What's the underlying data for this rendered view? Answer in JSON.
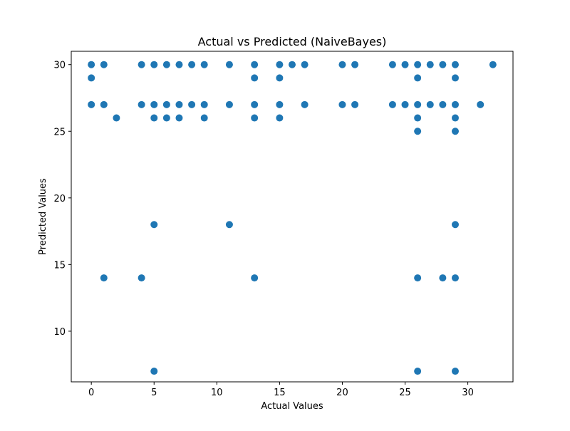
{
  "chart_data": {
    "type": "scatter",
    "title": "Actual vs Predicted (NaiveBayes)",
    "xlabel": "Actual Values",
    "ylabel": "Predicted Values",
    "xlim": [
      -1.6,
      33.6
    ],
    "ylim": [
      6.2,
      31.0
    ],
    "x_ticks": [
      0,
      5,
      10,
      15,
      20,
      25,
      30
    ],
    "y_ticks": [
      10,
      15,
      20,
      25,
      30
    ],
    "grid": false,
    "marker_color": "#1f77b4",
    "points": [
      {
        "x": 0,
        "y": 30
      },
      {
        "x": 0,
        "y": 29
      },
      {
        "x": 0,
        "y": 27
      },
      {
        "x": 1,
        "y": 30
      },
      {
        "x": 1,
        "y": 27
      },
      {
        "x": 1,
        "y": 14
      },
      {
        "x": 2,
        "y": 26
      },
      {
        "x": 4,
        "y": 30
      },
      {
        "x": 4,
        "y": 27
      },
      {
        "x": 4,
        "y": 14
      },
      {
        "x": 5,
        "y": 30
      },
      {
        "x": 5,
        "y": 27
      },
      {
        "x": 5,
        "y": 26
      },
      {
        "x": 5,
        "y": 18
      },
      {
        "x": 5,
        "y": 7
      },
      {
        "x": 6,
        "y": 30
      },
      {
        "x": 6,
        "y": 27
      },
      {
        "x": 6,
        "y": 26
      },
      {
        "x": 7,
        "y": 30
      },
      {
        "x": 7,
        "y": 27
      },
      {
        "x": 7,
        "y": 26
      },
      {
        "x": 8,
        "y": 30
      },
      {
        "x": 8,
        "y": 27
      },
      {
        "x": 9,
        "y": 30
      },
      {
        "x": 9,
        "y": 27
      },
      {
        "x": 9,
        "y": 26
      },
      {
        "x": 11,
        "y": 30
      },
      {
        "x": 11,
        "y": 27
      },
      {
        "x": 11,
        "y": 18
      },
      {
        "x": 13,
        "y": 30
      },
      {
        "x": 13,
        "y": 29
      },
      {
        "x": 13,
        "y": 27
      },
      {
        "x": 13,
        "y": 26
      },
      {
        "x": 13,
        "y": 14
      },
      {
        "x": 15,
        "y": 30
      },
      {
        "x": 15,
        "y": 29
      },
      {
        "x": 15,
        "y": 27
      },
      {
        "x": 15,
        "y": 26
      },
      {
        "x": 16,
        "y": 30
      },
      {
        "x": 17,
        "y": 30
      },
      {
        "x": 17,
        "y": 27
      },
      {
        "x": 20,
        "y": 30
      },
      {
        "x": 20,
        "y": 27
      },
      {
        "x": 21,
        "y": 30
      },
      {
        "x": 21,
        "y": 27
      },
      {
        "x": 24,
        "y": 30
      },
      {
        "x": 24,
        "y": 27
      },
      {
        "x": 25,
        "y": 30
      },
      {
        "x": 25,
        "y": 27
      },
      {
        "x": 26,
        "y": 30
      },
      {
        "x": 26,
        "y": 29
      },
      {
        "x": 26,
        "y": 27
      },
      {
        "x": 26,
        "y": 26
      },
      {
        "x": 26,
        "y": 25
      },
      {
        "x": 26,
        "y": 14
      },
      {
        "x": 26,
        "y": 7
      },
      {
        "x": 27,
        "y": 30
      },
      {
        "x": 27,
        "y": 27
      },
      {
        "x": 28,
        "y": 30
      },
      {
        "x": 28,
        "y": 27
      },
      {
        "x": 28,
        "y": 14
      },
      {
        "x": 29,
        "y": 30
      },
      {
        "x": 29,
        "y": 29
      },
      {
        "x": 29,
        "y": 27
      },
      {
        "x": 29,
        "y": 26
      },
      {
        "x": 29,
        "y": 25
      },
      {
        "x": 29,
        "y": 18
      },
      {
        "x": 29,
        "y": 14
      },
      {
        "x": 29,
        "y": 7
      },
      {
        "x": 31,
        "y": 27
      },
      {
        "x": 32,
        "y": 30
      }
    ]
  }
}
